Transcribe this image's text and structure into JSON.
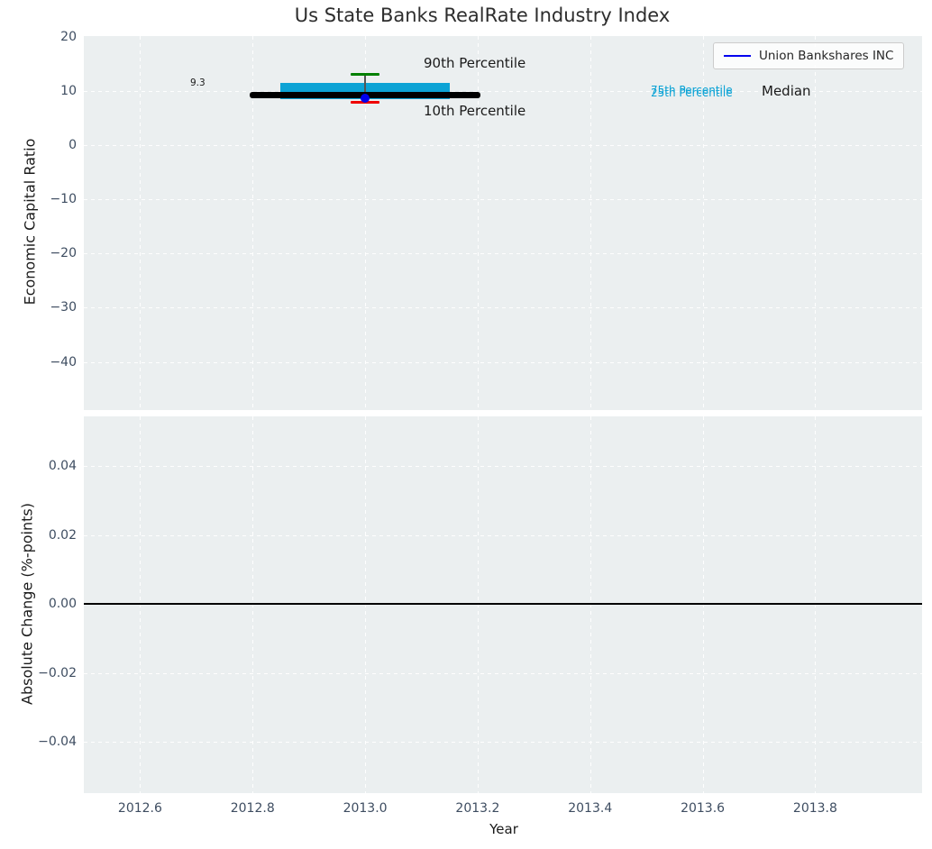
{
  "figure": {
    "title": "Us State Banks RealRate Industry Index",
    "background": "#ffffff",
    "axes_background": "#ebeff0"
  },
  "legend": {
    "label": "Union Bankshares INC",
    "line_color": "#0000ee"
  },
  "annotations": {
    "p90_label": "90th Percentile",
    "p10_label": "10th Percentile",
    "p75_label": "75th Percentile",
    "p25_label": "25th Percentile",
    "median_label": "Median",
    "median_value_label": "9.3"
  },
  "top_axes": {
    "ylabel": "Economic Capital Ratio",
    "ytick_labels": [
      "20",
      "10",
      "0",
      "−10",
      "−20",
      "−30",
      "−40"
    ]
  },
  "bottom_axes": {
    "ylabel": "Absolute Change (%-points)",
    "xlabel": "Year",
    "ytick_labels": [
      "0.04",
      "0.02",
      "0.00",
      "−0.02",
      "−0.04"
    ]
  },
  "x_axis": {
    "tick_labels": [
      "2012.6",
      "2012.8",
      "2013.0",
      "2013.2",
      "2013.4",
      "2013.6",
      "2013.8"
    ]
  },
  "colors": {
    "box": "#0ca3d5",
    "median": "#000000",
    "p90_cap": "#008000",
    "p10_cap": "#ef0000",
    "company_dot": "#0000ee",
    "whisker": "#555555",
    "grid": "#ffffff",
    "tick_text": "#3e4d61",
    "zero_line": "#000000"
  },
  "chart_data": [
    {
      "type": "box",
      "title": "Us State Banks RealRate Industry Index",
      "ylabel": "Economic Capital Ratio",
      "xlabel": "",
      "ylim": [
        -48.9,
        20.2
      ],
      "xlim": [
        2012.5,
        2013.99
      ],
      "yticks": [
        20,
        10,
        0,
        -10,
        -20,
        -30,
        -40
      ],
      "xticks": [
        2012.6,
        2012.8,
        2013.0,
        2013.2,
        2013.4,
        2013.6,
        2013.8
      ],
      "grid": true,
      "legend_position": "upper right",
      "box": {
        "year": 2013.0,
        "p90": 13.2,
        "p75": 11.5,
        "median": 9.3,
        "p25": 8.5,
        "p10": 7.9,
        "company": "Union Bankshares INC",
        "company_value": 8.7,
        "median_value_label": "9.3",
        "box_x_range": [
          2012.85,
          2013.15
        ],
        "median_x_range": [
          2012.795,
          2013.205
        ]
      }
    },
    {
      "type": "line",
      "ylabel": "Absolute Change (%-points)",
      "xlabel": "Year",
      "ylim": [
        -0.0548,
        0.0545
      ],
      "xlim": [
        2012.5,
        2013.99
      ],
      "yticks": [
        0.04,
        0.02,
        0.0,
        -0.02,
        -0.04
      ],
      "xticks": [
        2012.6,
        2012.8,
        2013.0,
        2013.2,
        2013.4,
        2013.6,
        2013.8
      ],
      "grid": true,
      "zero_line": 0.0,
      "series": []
    }
  ]
}
